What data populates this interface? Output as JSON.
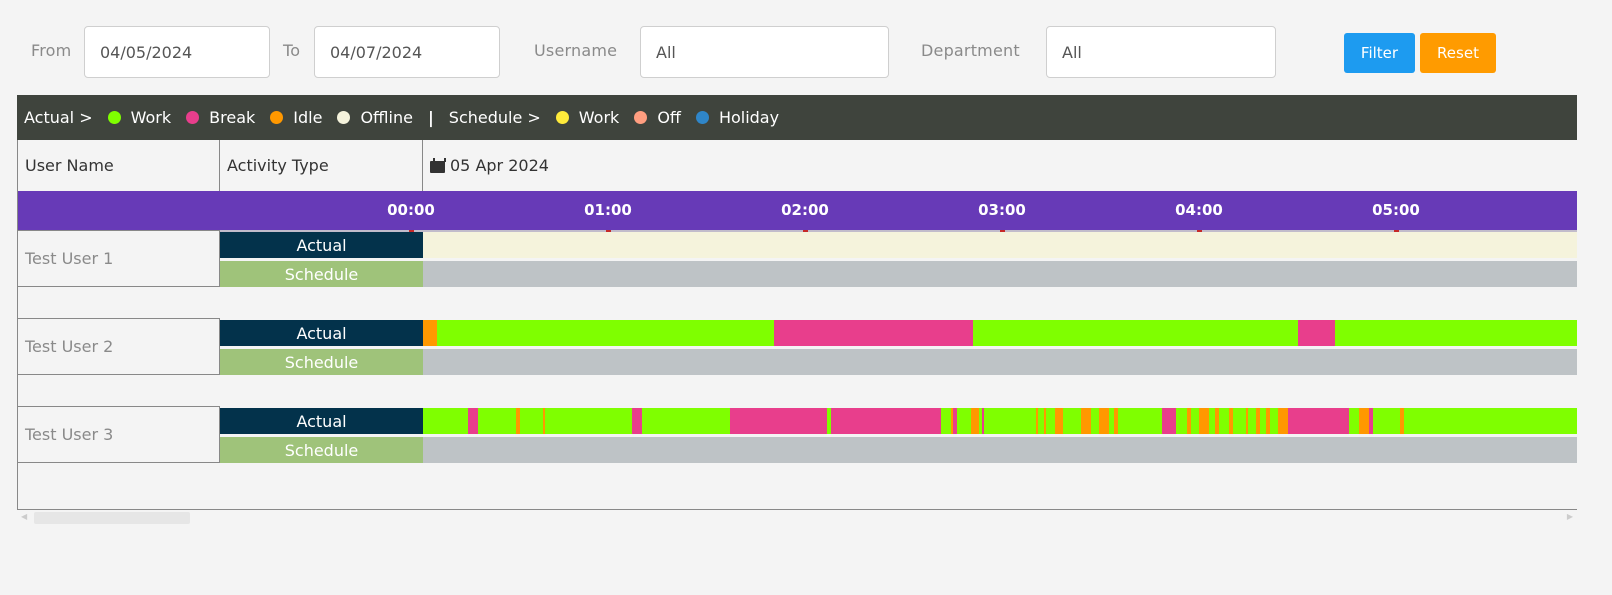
{
  "filters": {
    "from_label": "From",
    "from_value": "04/05/2024",
    "to_label": "To",
    "to_value": "04/07/2024",
    "username_label": "Username",
    "username_value": "All",
    "department_label": "Department",
    "department_value": "All",
    "filter_button": "Filter",
    "reset_button": "Reset"
  },
  "legend": {
    "actual_label": "Actual >",
    "actual_items": [
      {
        "label": "Work",
        "color": "#7fff00"
      },
      {
        "label": "Break",
        "color": "#e83e8c"
      },
      {
        "label": "Idle",
        "color": "#ff9800"
      },
      {
        "label": "Offline",
        "color": "#f5f3dc"
      }
    ],
    "separator": "|",
    "schedule_label": "Schedule >",
    "schedule_items": [
      {
        "label": "Work",
        "color": "#ffeb3b"
      },
      {
        "label": "Off",
        "color": "#ff9e80"
      },
      {
        "label": "Holiday",
        "color": "#2f86c9"
      }
    ]
  },
  "grid": {
    "user_header": "User Name",
    "activity_header": "Activity Type",
    "date_header": "05 Apr 2024",
    "time_labels": [
      "00:00",
      "01:00",
      "02:00",
      "03:00",
      "04:00",
      "05:00"
    ],
    "actual_label": "Actual",
    "schedule_label": "Schedule"
  },
  "colors": {
    "work": "#7fff00",
    "break": "#e83e8c",
    "idle": "#ff9800",
    "offline": "#f5f3dc",
    "schedule_none": "#bec3c6"
  },
  "users": [
    {
      "name": "Test User 1",
      "actual": [
        [
          "offline",
          0.0,
          6.0
        ]
      ],
      "schedule": [
        [
          "none",
          0.0,
          6.0
        ]
      ]
    },
    {
      "name": "Test User 2",
      "actual": [
        [
          "idle",
          0.0,
          0.07
        ],
        [
          "work",
          0.07,
          1.78
        ],
        [
          "break",
          1.78,
          2.79
        ],
        [
          "work",
          2.79,
          4.44
        ],
        [
          "break",
          4.44,
          4.63
        ],
        [
          "work",
          4.63,
          6.0
        ]
      ],
      "schedule": [
        [
          "none",
          0.0,
          6.0
        ]
      ]
    },
    {
      "name": "Test User 3",
      "actual": [
        [
          "work",
          0.0,
          0.23
        ],
        [
          "break",
          0.23,
          0.28
        ],
        [
          "work",
          0.28,
          0.47
        ],
        [
          "idle",
          0.47,
          0.49
        ],
        [
          "work",
          0.49,
          0.61
        ],
        [
          "idle",
          0.61,
          0.62
        ],
        [
          "work",
          0.62,
          1.06
        ],
        [
          "break",
          1.06,
          1.11
        ],
        [
          "work",
          1.11,
          1.56
        ],
        [
          "break",
          1.56,
          2.05
        ],
        [
          "work",
          2.05,
          2.07
        ],
        [
          "break",
          2.07,
          2.63
        ],
        [
          "work",
          2.63,
          2.68
        ],
        [
          "idle",
          2.68,
          2.69
        ],
        [
          "break",
          2.69,
          2.71
        ],
        [
          "work",
          2.71,
          2.78
        ],
        [
          "idle",
          2.78,
          2.82
        ],
        [
          "work",
          2.82,
          2.84
        ],
        [
          "break",
          2.84,
          2.85
        ],
        [
          "work",
          2.85,
          3.11
        ],
        [
          "idle",
          3.11,
          3.12
        ],
        [
          "work",
          3.12,
          3.15
        ],
        [
          "idle",
          3.15,
          3.16
        ],
        [
          "work",
          3.16,
          3.21
        ],
        [
          "idle",
          3.21,
          3.25
        ],
        [
          "work",
          3.25,
          3.34
        ],
        [
          "idle",
          3.34,
          3.39
        ],
        [
          "work",
          3.39,
          3.43
        ],
        [
          "idle",
          3.43,
          3.48
        ],
        [
          "work",
          3.48,
          3.51
        ],
        [
          "idle",
          3.51,
          3.53
        ],
        [
          "work",
          3.53,
          3.75
        ],
        [
          "break",
          3.75,
          3.82
        ],
        [
          "work",
          3.82,
          3.88
        ],
        [
          "idle",
          3.88,
          3.9
        ],
        [
          "work",
          3.9,
          3.94
        ],
        [
          "idle",
          3.94,
          3.99
        ],
        [
          "work",
          3.99,
          4.02
        ],
        [
          "idle",
          4.02,
          4.04
        ],
        [
          "work",
          4.04,
          4.09
        ],
        [
          "idle",
          4.09,
          4.11
        ],
        [
          "work",
          4.11,
          4.18
        ],
        [
          "idle",
          4.18,
          4.19
        ],
        [
          "work",
          4.19,
          4.23
        ],
        [
          "idle",
          4.23,
          4.25
        ],
        [
          "work",
          4.25,
          4.28
        ],
        [
          "idle",
          4.28,
          4.3
        ],
        [
          "work",
          4.3,
          4.34
        ],
        [
          "idle",
          4.34,
          4.39
        ],
        [
          "break",
          4.39,
          4.7
        ],
        [
          "work",
          4.7,
          4.75
        ],
        [
          "idle",
          4.75,
          4.8
        ],
        [
          "break",
          4.8,
          4.82
        ],
        [
          "work",
          4.82,
          4.96
        ],
        [
          "idle",
          4.96,
          4.98
        ],
        [
          "work",
          4.98,
          6.0
        ]
      ],
      "schedule": [
        [
          "none",
          0.0,
          6.0
        ]
      ]
    }
  ]
}
